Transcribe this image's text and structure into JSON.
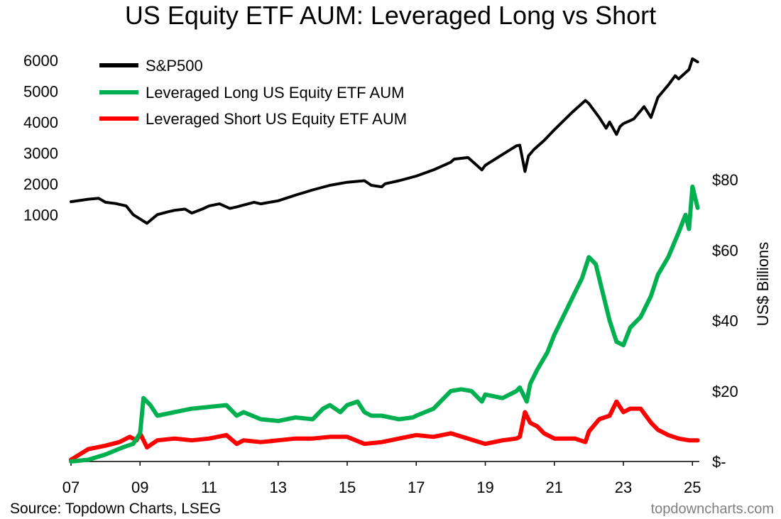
{
  "chart_data": {
    "type": "line",
    "title": "US Equity ETF AUM: Leveraged Long vs Short",
    "x_tick_labels": [
      "07",
      "09",
      "11",
      "13",
      "15",
      "17",
      "19",
      "21",
      "23",
      "25"
    ],
    "x_ticks": [
      2007,
      2009,
      2011,
      2013,
      2015,
      2017,
      2019,
      2021,
      2023,
      2025
    ],
    "xlim": [
      2007,
      2025.2
    ],
    "left_axis": {
      "label": "",
      "ticks": [
        1000,
        2000,
        3000,
        4000,
        5000,
        6000
      ],
      "tick_labels": [
        "1000",
        "2000",
        "3000",
        "4000",
        "5000",
        "6000"
      ],
      "range": [
        -7000,
        6000
      ]
    },
    "right_axis": {
      "label": "US$ Billions",
      "ticks": [
        0,
        20,
        40,
        60,
        80
      ],
      "tick_labels": [
        "$-",
        "$20",
        "$40",
        "$60",
        "$80"
      ],
      "range": [
        0,
        80
      ]
    },
    "legend_position": "top-left",
    "grid": false,
    "series": [
      {
        "name": "S&P500",
        "axis": "left",
        "color": "#000000",
        "x": [
          2007.0,
          2007.5,
          2007.8,
          2008.0,
          2008.3,
          2008.6,
          2008.8,
          2009.0,
          2009.2,
          2009.5,
          2009.8,
          2010.0,
          2010.3,
          2010.5,
          2010.8,
          2011.0,
          2011.3,
          2011.6,
          2011.8,
          2012.0,
          2012.3,
          2012.5,
          2012.8,
          2013.0,
          2013.5,
          2014.0,
          2014.5,
          2015.0,
          2015.5,
          2015.7,
          2016.0,
          2016.1,
          2016.5,
          2017.0,
          2017.5,
          2018.0,
          2018.1,
          2018.5,
          2018.9,
          2019.0,
          2019.5,
          2019.9,
          2020.0,
          2020.15,
          2020.25,
          2020.4,
          2020.7,
          2021.0,
          2021.5,
          2021.9,
          2022.0,
          2022.3,
          2022.5,
          2022.6,
          2022.8,
          2022.9,
          2023.0,
          2023.3,
          2023.6,
          2023.8,
          2024.0,
          2024.3,
          2024.5,
          2024.6,
          2024.9,
          2025.0,
          2025.15
        ],
        "y": [
          1420,
          1500,
          1530,
          1400,
          1360,
          1280,
          1000,
          860,
          720,
          1000,
          1090,
          1140,
          1180,
          1050,
          1180,
          1280,
          1350,
          1200,
          1250,
          1310,
          1400,
          1350,
          1410,
          1450,
          1630,
          1800,
          1950,
          2050,
          2100,
          1950,
          1900,
          2000,
          2100,
          2250,
          2450,
          2700,
          2800,
          2850,
          2450,
          2600,
          2950,
          3230,
          3250,
          2400,
          2900,
          3100,
          3400,
          3750,
          4300,
          4700,
          4600,
          4150,
          3800,
          4000,
          3600,
          3850,
          3950,
          4100,
          4500,
          4150,
          4800,
          5200,
          5500,
          5400,
          5700,
          6050,
          5950
        ]
      },
      {
        "name": "Leveraged Long US Equity ETF AUM",
        "axis": "right",
        "color": "#00b050",
        "x": [
          2007.0,
          2007.5,
          2008.0,
          2008.5,
          2008.8,
          2009.0,
          2009.1,
          2009.3,
          2009.5,
          2010.0,
          2010.5,
          2011.0,
          2011.5,
          2011.8,
          2012.0,
          2012.5,
          2013.0,
          2013.5,
          2014.0,
          2014.3,
          2014.5,
          2014.8,
          2015.0,
          2015.3,
          2015.5,
          2015.7,
          2016.0,
          2016.5,
          2016.9,
          2017.0,
          2017.5,
          2018.0,
          2018.3,
          2018.6,
          2018.9,
          2019.0,
          2019.5,
          2019.9,
          2020.0,
          2020.2,
          2020.3,
          2020.5,
          2020.8,
          2021.0,
          2021.3,
          2021.6,
          2021.8,
          2022.0,
          2022.2,
          2022.4,
          2022.6,
          2022.8,
          2023.0,
          2023.2,
          2023.5,
          2023.8,
          2024.0,
          2024.3,
          2024.6,
          2024.8,
          2024.9,
          2025.0,
          2025.15
        ],
        "y": [
          0,
          0.5,
          2,
          4,
          5,
          8,
          18,
          16,
          13,
          14,
          15,
          15.5,
          16,
          13,
          14,
          12,
          11.5,
          12.5,
          12,
          15,
          16,
          14,
          16,
          17,
          14,
          13,
          13,
          12,
          12.5,
          13,
          15,
          20,
          20.5,
          20,
          17,
          19,
          18,
          20,
          21,
          17,
          22,
          26,
          31,
          36,
          42,
          48,
          52,
          58,
          56,
          48,
          40,
          34,
          33,
          38,
          41,
          47,
          53,
          58,
          65,
          70,
          66,
          78,
          72
        ]
      },
      {
        "name": "Leveraged Short US Equity ETF AUM",
        "axis": "right",
        "color": "#ff0000",
        "x": [
          2007.0,
          2007.5,
          2008.0,
          2008.4,
          2008.7,
          2008.9,
          2009.0,
          2009.2,
          2009.5,
          2010.0,
          2010.5,
          2011.0,
          2011.5,
          2011.8,
          2012.0,
          2012.5,
          2013.0,
          2013.5,
          2014.0,
          2014.5,
          2015.0,
          2015.5,
          2016.0,
          2016.5,
          2017.0,
          2017.5,
          2018.0,
          2018.5,
          2019.0,
          2019.5,
          2019.9,
          2020.0,
          2020.15,
          2020.3,
          2020.5,
          2020.7,
          2021.0,
          2021.3,
          2021.6,
          2021.9,
          2022.0,
          2022.3,
          2022.6,
          2022.8,
          2023.0,
          2023.2,
          2023.5,
          2023.8,
          2024.0,
          2024.3,
          2024.6,
          2024.9,
          2025.15
        ],
        "y": [
          0.5,
          3.5,
          4.5,
          5.5,
          7,
          6,
          8,
          4,
          6,
          6.5,
          6,
          6.5,
          7.5,
          5,
          6,
          5.5,
          6,
          6.5,
          6.5,
          7,
          7,
          5,
          5.5,
          6.5,
          7.5,
          7,
          8,
          6.5,
          5,
          6,
          6.5,
          7,
          14,
          11,
          10,
          8,
          6.5,
          6.5,
          6.5,
          5.5,
          8.5,
          12,
          13,
          17,
          14,
          15,
          15,
          11,
          9,
          7.5,
          6.5,
          6,
          6
        ]
      }
    ]
  },
  "footer": {
    "source": "Source: Topdown Charts, LSEG",
    "credit": "topdowncharts.com"
  }
}
